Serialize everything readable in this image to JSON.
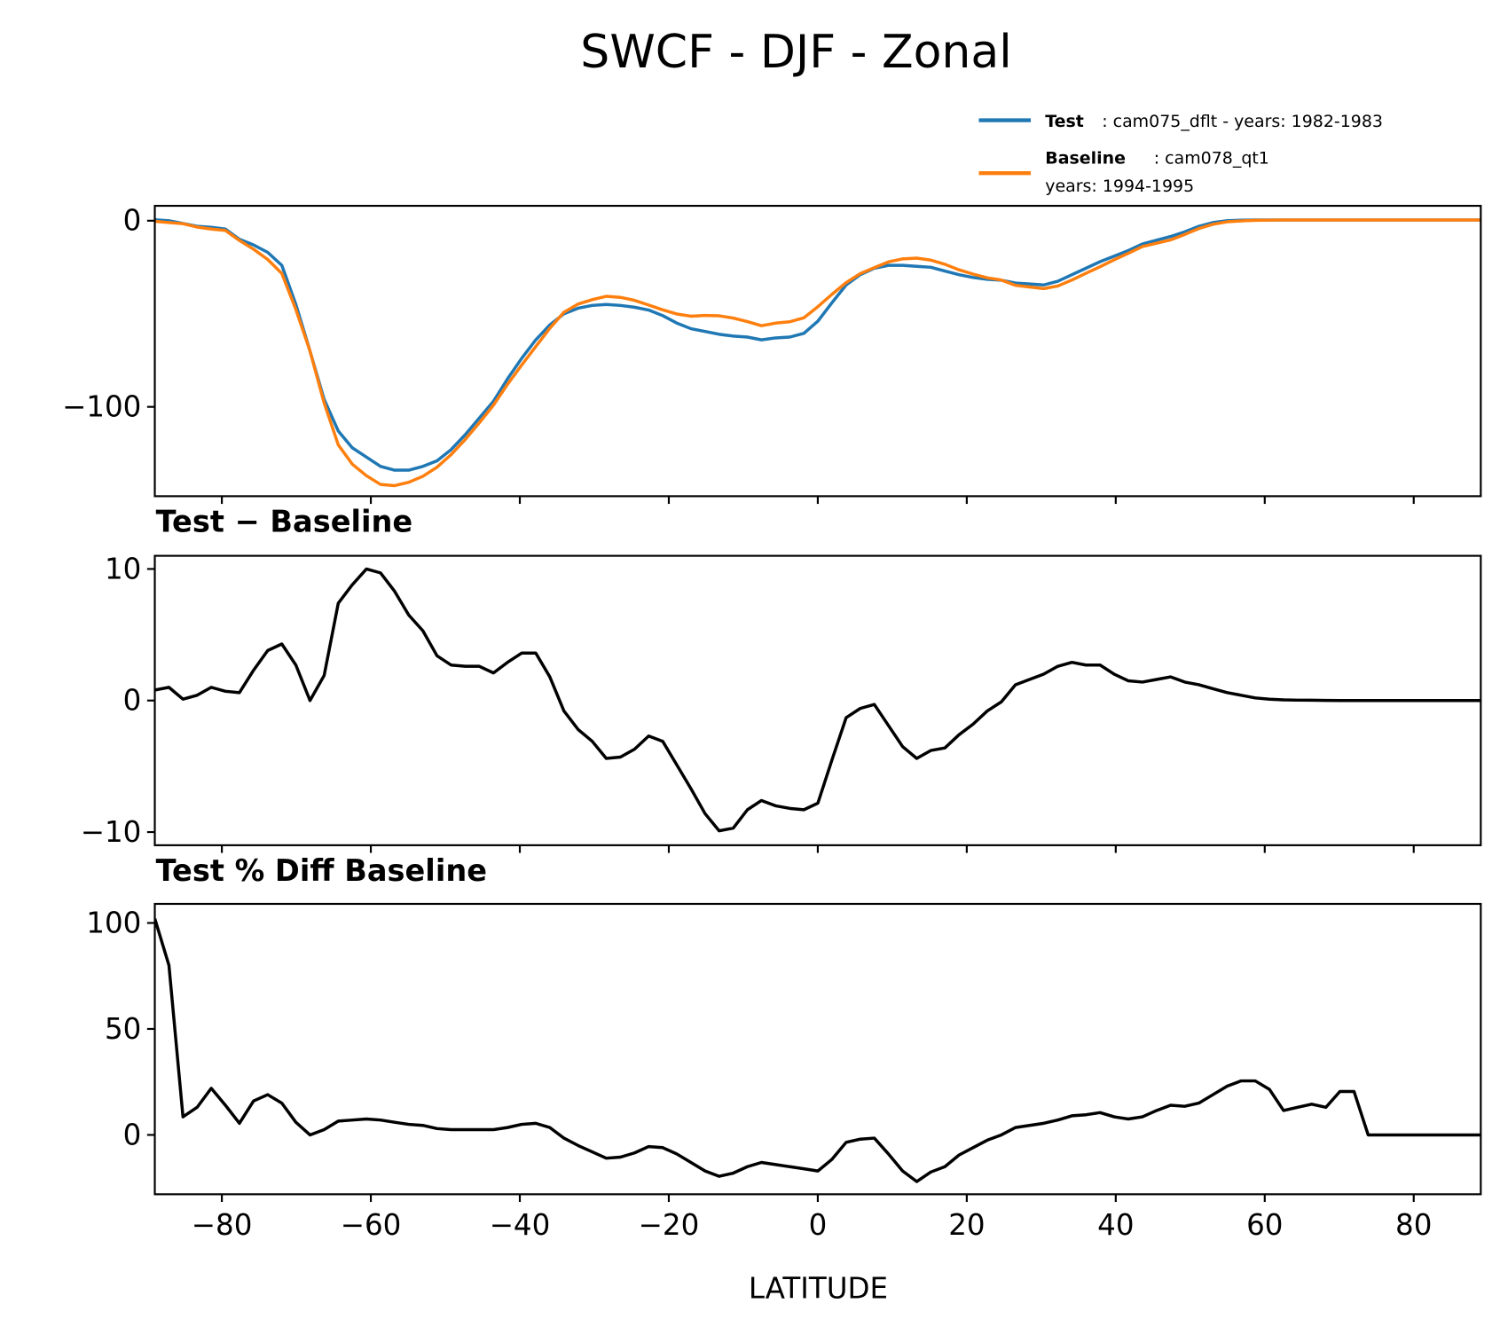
{
  "chart_data": {
    "title": "SWCF - DJF - Zonal",
    "xlabel": "LATITUDE",
    "x_ticks": [
      -80,
      -60,
      -40,
      -20,
      0,
      20,
      40,
      60,
      80
    ],
    "x_tick_labels": [
      "−80",
      "−60",
      "−40",
      "−20",
      "0",
      "20",
      "40",
      "60",
      "80"
    ],
    "xlim": [
      -89,
      89
    ],
    "lat_start": -89,
    "lat_step": 1.894,
    "legend": {
      "placement": "top-right (above top panel)",
      "entries": [
        {
          "name_bold": "Test",
          "text": ": cam075_dflt - years: 1982-1983",
          "text2": "",
          "color": "#1f77b4"
        },
        {
          "name_bold": "Baseline",
          "text": ": cam078_qt1",
          "text2": "years: 1994-1995",
          "color": "#ff7f0e"
        }
      ]
    },
    "panels": [
      {
        "type": "line",
        "title": "",
        "ylim": [
          -148,
          8
        ],
        "y_ticks": [
          0,
          -100
        ],
        "y_tick_labels": [
          "0",
          "−100"
        ],
        "series": [
          {
            "name": "Test",
            "color": "#1f77b4",
            "values": [
              0.5,
              0,
              -1.5,
              -3,
              -3.5,
              -4.5,
              -10,
              -13,
              -17,
              -24,
              -45,
              -70,
              -96,
              -113,
              -122,
              -127,
              -132,
              -134,
              -134,
              -132,
              -129,
              -123,
              -115,
              -106,
              -97,
              -85,
              -74,
              -64,
              -56,
              -50,
              -47,
              -45.5,
              -45,
              -45.5,
              -46.5,
              -48,
              -51,
              -55,
              -58,
              -59.5,
              -61,
              -62,
              -62.5,
              -64,
              -63,
              -62.5,
              -60.5,
              -54,
              -44,
              -34.5,
              -29,
              -25.5,
              -24,
              -24,
              -24.5,
              -25,
              -27,
              -29,
              -30.5,
              -31.5,
              -32,
              -33.5,
              -34,
              -34.5,
              -32.5,
              -29,
              -25.5,
              -22,
              -19,
              -16,
              -12.5,
              -10.5,
              -8.5,
              -6,
              -3,
              -1,
              0,
              0.3,
              0.4,
              0.4,
              0.4,
              0.4,
              0.4,
              0.4,
              0.4,
              0.4,
              0.4,
              0.4,
              0.4,
              0.4,
              0.4,
              0.4,
              0.4,
              0.4,
              0.4
            ]
          },
          {
            "name": "Baseline",
            "color": "#ff7f0e",
            "values": [
              -0.3,
              -1,
              -1.6,
              -3.4,
              -4.5,
              -5.2,
              -10.6,
              -15.3,
              -20.8,
              -28.3,
              -47.7,
              -70,
              -97.9,
              -120.4,
              -130.8,
              -137,
              -141.7,
              -142.3,
              -140.5,
              -137.3,
              -132.4,
              -125.7,
              -117.6,
              -108.6,
              -99.1,
              -87.9,
              -77.6,
              -67.6,
              -57.8,
              -49.2,
              -44.8,
              -42.4,
              -40.6,
              -41.2,
              -42.8,
              -45.3,
              -47.9,
              -50.1,
              -51.3,
              -50.9,
              -51.1,
              -52.3,
              -54.2,
              -56.4,
              -55,
              -54.3,
              -52.2,
              -46.2,
              -39.5,
              -33.2,
              -28.4,
              -25.2,
              -22.1,
              -20.5,
              -20.1,
              -21.2,
              -23.4,
              -26.4,
              -28.7,
              -30.7,
              -31.9,
              -34.7,
              -35.6,
              -36.5,
              -35.1,
              -31.9,
              -28.2,
              -24.7,
              -21,
              -17.5,
              -13.9,
              -12.1,
              -10.3,
              -7.4,
              -4.2,
              -1.9,
              -0.6,
              -0.1,
              0.2,
              0.3,
              0.4,
              0.4,
              0.4,
              0.4,
              0.4,
              0.4,
              0.4,
              0.4,
              0.4,
              0.4,
              0.4,
              0.4,
              0.4,
              0.4,
              0.4
            ]
          }
        ]
      },
      {
        "type": "line",
        "title": "Test − Baseline",
        "ylim": [
          -11,
          11
        ],
        "y_ticks": [
          10,
          0,
          -10
        ],
        "y_tick_labels": [
          "10",
          "0",
          "−10"
        ],
        "series": [
          {
            "name": "Test - Baseline",
            "color": "#000000",
            "values": [
              0.8,
              1.0,
              0.1,
              0.4,
              1.0,
              0.7,
              0.6,
              2.3,
              3.8,
              4.3,
              2.7,
              0.0,
              1.9,
              7.4,
              8.8,
              10.0,
              9.7,
              8.3,
              6.5,
              5.3,
              3.4,
              2.7,
              2.6,
              2.6,
              2.1,
              2.9,
              3.6,
              3.6,
              1.8,
              -0.8,
              -2.2,
              -3.1,
              -4.4,
              -4.3,
              -3.7,
              -2.7,
              -3.1,
              -4.9,
              -6.7,
              -8.6,
              -9.9,
              -9.7,
              -8.3,
              -7.6,
              -8.0,
              -8.2,
              -8.3,
              -7.8,
              -4.5,
              -1.3,
              -0.6,
              -0.3,
              -1.9,
              -3.5,
              -4.4,
              -3.8,
              -3.6,
              -2.6,
              -1.8,
              -0.8,
              -0.1,
              1.2,
              1.6,
              2.0,
              2.6,
              2.9,
              2.7,
              2.7,
              2.0,
              1.5,
              1.4,
              1.6,
              1.8,
              1.4,
              1.2,
              0.9,
              0.6,
              0.4,
              0.2,
              0.1,
              0.05,
              0.03,
              0.02,
              0.01,
              0,
              0,
              0,
              0,
              0,
              0,
              0,
              0,
              0,
              0,
              0
            ]
          }
        ]
      },
      {
        "type": "line",
        "title": "Test % Diff Baseline",
        "ylim": [
          -28,
          109
        ],
        "y_ticks": [
          100,
          50,
          0
        ],
        "y_tick_labels": [
          "100",
          "50",
          "0"
        ],
        "series": [
          {
            "name": "Test % Diff Baseline",
            "color": "#000000",
            "values": [
              102,
              80,
              8.5,
              13,
              22,
              14,
              5.5,
              16,
              19,
              15,
              6,
              0,
              2.5,
              6.5,
              7,
              7.5,
              7,
              6,
              5,
              4.5,
              3,
              2.5,
              2.5,
              2.5,
              2.5,
              3.5,
              5,
              5.5,
              3.5,
              -1.5,
              -5,
              -8,
              -11,
              -10.5,
              -8.5,
              -5.5,
              -6,
              -9,
              -13,
              -17,
              -19.5,
              -18,
              -15,
              -13,
              -14,
              -15,
              -16,
              -17,
              -11.5,
              -3.5,
              -2,
              -1.5,
              -9,
              -17,
              -22,
              -17.5,
              -15,
              -9.5,
              -6,
              -2.5,
              0,
              3.5,
              4.5,
              5.5,
              7,
              9,
              9.5,
              10.5,
              8.5,
              7.5,
              8.5,
              11.5,
              14,
              13.5,
              15,
              19,
              23,
              25.5,
              25.5,
              21.5,
              11.5,
              13,
              14.5,
              13,
              20.5,
              20.5,
              0,
              0,
              0,
              0,
              0,
              0,
              0,
              0,
              0
            ]
          }
        ]
      }
    ]
  }
}
